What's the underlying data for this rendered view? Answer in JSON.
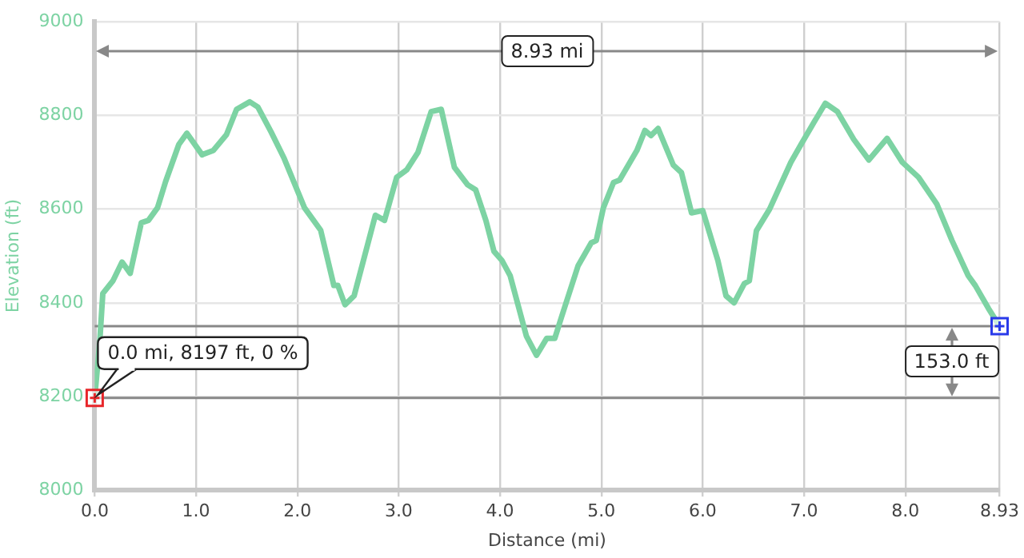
{
  "chart_data": {
    "type": "line",
    "xlabel": "Distance (mi)",
    "ylabel": "Elevation (ft)",
    "series": [
      {
        "color": "#7dd3a3",
        "x": [
          0,
          0.05,
          0.08,
          0.18,
          0.27,
          0.35,
          0.46,
          0.53,
          0.62,
          0.7,
          0.83,
          0.91,
          1.06,
          1.17,
          1.3,
          1.4,
          1.53,
          1.61,
          1.74,
          1.87,
          2.07,
          2.23,
          2.36,
          2.4,
          2.47,
          2.56,
          2.77,
          2.86,
          2.98,
          3.08,
          3.19,
          3.32,
          3.42,
          3.55,
          3.68,
          3.76,
          3.86,
          3.94,
          4.02,
          4.1,
          4.26,
          4.36,
          4.46,
          4.54,
          4.61,
          4.77,
          4.9,
          4.95,
          5.02,
          5.12,
          5.18,
          5.35,
          5.43,
          5.49,
          5.56,
          5.71,
          5.79,
          5.89,
          6.0,
          6.15,
          6.23,
          6.31,
          6.41,
          6.46,
          6.53,
          6.66,
          6.87,
          6.97,
          7.1,
          7.21,
          7.33,
          7.49,
          7.64,
          7.82,
          7.97,
          8.13,
          8.31,
          8.46,
          8.62,
          8.69,
          8.82,
          8.93
        ],
        "values": [
          8197,
          8318,
          8420,
          8447,
          8487,
          8463,
          8571,
          8576,
          8603,
          8659,
          8738,
          8762,
          8716,
          8725,
          8759,
          8813,
          8829,
          8818,
          8765,
          8708,
          8603,
          8555,
          8437,
          8437,
          8396,
          8415,
          8587,
          8576,
          8668,
          8684,
          8721,
          8808,
          8813,
          8689,
          8652,
          8641,
          8576,
          8510,
          8490,
          8458,
          8329,
          8288,
          8324,
          8324,
          8372,
          8479,
          8528,
          8533,
          8603,
          8657,
          8662,
          8725,
          8768,
          8757,
          8772,
          8694,
          8678,
          8592,
          8597,
          8490,
          8415,
          8400,
          8441,
          8447,
          8554,
          8600,
          8700,
          8738,
          8786,
          8826,
          8808,
          8749,
          8705,
          8751,
          8700,
          8668,
          8611,
          8533,
          8458,
          8437,
          8388,
          8350
        ]
      }
    ],
    "xlim": [
      0,
      8.93
    ],
    "xticks": [
      {
        "value": 0,
        "label": "0.0"
      },
      {
        "value": 1,
        "label": "1.0"
      },
      {
        "value": 2,
        "label": "2.0"
      },
      {
        "value": 3,
        "label": "3.0"
      },
      {
        "value": 4,
        "label": "4.0"
      },
      {
        "value": 5,
        "label": "5.0"
      },
      {
        "value": 6,
        "label": "6.0"
      },
      {
        "value": 7,
        "label": "7.0"
      },
      {
        "value": 8,
        "label": "8.0"
      },
      8.93
    ],
    "ylim": [
      8000,
      9000
    ],
    "yticks": [
      8000,
      8200,
      8400,
      8600,
      8800,
      9000
    ],
    "ref_lines": [
      {
        "axis": "y",
        "value": 8197,
        "color": "#888888"
      },
      {
        "axis": "y",
        "value": 8350,
        "color": "#888888"
      }
    ],
    "annotations": [
      {
        "text": "0.0 mi, 8197 ft, 0 %",
        "x": 0,
        "y": 8197
      },
      "8.93 mi",
      "153.0 ft"
    ],
    "grid": true,
    "legend": false,
    "marker": "none",
    "line_style": "solid"
  }
}
